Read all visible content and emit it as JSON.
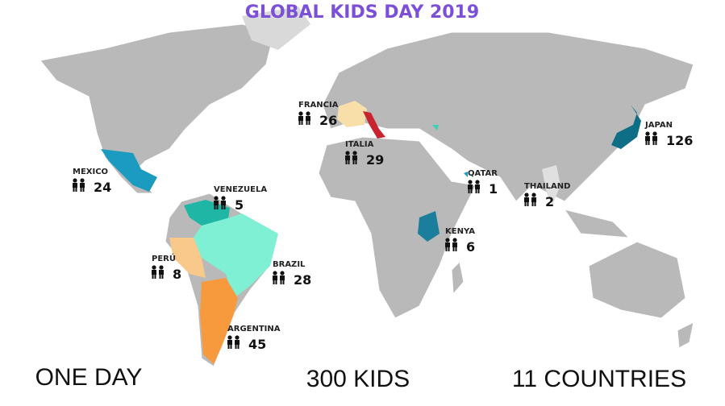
{
  "title": "GLOBAL KIDS DAY 2019",
  "countries": [
    {
      "name": "FRANCIA",
      "count": 26
    },
    {
      "name": "ITALIA",
      "count": 29
    },
    {
      "name": "JAPAN",
      "count": 126
    },
    {
      "name": "MEXICO",
      "count": 24
    },
    {
      "name": "VENEZUELA",
      "count": 5
    },
    {
      "name": "QATAR",
      "count": 1
    },
    {
      "name": "THAILAND",
      "count": 2
    },
    {
      "name": "KENYA",
      "count": 6
    },
    {
      "name": "PERÚ",
      "count": 8
    },
    {
      "name": "BRAZIL",
      "count": 28
    },
    {
      "name": "ARGENTINA",
      "count": 45
    }
  ],
  "footer": [
    "ONE DAY",
    "300 KIDS",
    "11 COUNTRIES"
  ]
}
